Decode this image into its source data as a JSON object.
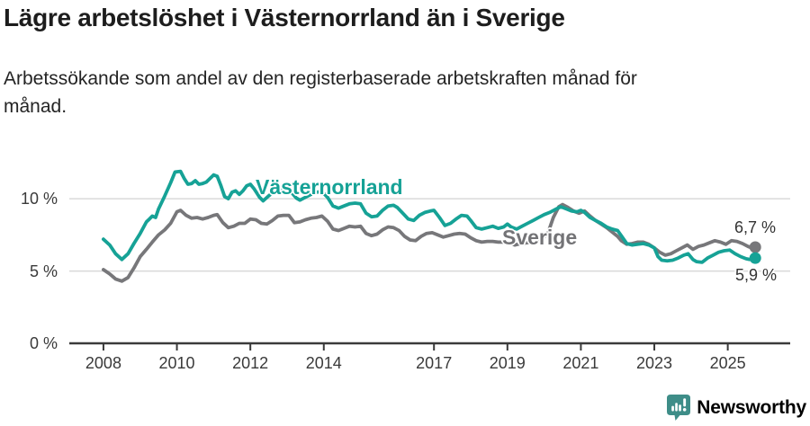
{
  "header": {
    "title": "Lägre arbetslöshet i Västernorrland än i Sverige",
    "subtitle_lines": [
      "Arbetssökande som andel av den registerbaserade arbetskraften månad för",
      "månad."
    ]
  },
  "chart_data": {
    "type": "line",
    "unit": "%",
    "grid": "horizontal",
    "legend_position": "inline-labels-on-lines",
    "x_axis": {
      "range": [
        2007.07,
        2026.7
      ],
      "ticks": [
        2008,
        2010,
        2012,
        2014,
        2017,
        2019,
        2021,
        2023,
        2025
      ]
    },
    "y_axis": {
      "range": [
        0,
        13.8
      ],
      "ticks": [
        {
          "value": 0,
          "label": "0 %"
        },
        {
          "value": 5,
          "label": "5 %"
        },
        {
          "value": 10,
          "label": "10 %"
        }
      ]
    },
    "series": [
      {
        "name": "Sverige",
        "color": "#77777a",
        "end_label": "6,7 %",
        "points": [
          [
            2008.0,
            5.1
          ],
          [
            2008.17,
            4.8
          ],
          [
            2008.33,
            4.45
          ],
          [
            2008.5,
            4.3
          ],
          [
            2008.67,
            4.55
          ],
          [
            2008.83,
            5.2
          ],
          [
            2009.0,
            6.0
          ],
          [
            2009.17,
            6.5
          ],
          [
            2009.33,
            7.0
          ],
          [
            2009.5,
            7.5
          ],
          [
            2009.67,
            7.85
          ],
          [
            2009.83,
            8.3
          ],
          [
            2010.0,
            9.1
          ],
          [
            2010.1,
            9.2
          ],
          [
            2010.25,
            8.85
          ],
          [
            2010.4,
            8.65
          ],
          [
            2010.55,
            8.7
          ],
          [
            2010.7,
            8.6
          ],
          [
            2010.85,
            8.7
          ],
          [
            2011.0,
            8.85
          ],
          [
            2011.1,
            8.9
          ],
          [
            2011.25,
            8.35
          ],
          [
            2011.4,
            8.0
          ],
          [
            2011.55,
            8.1
          ],
          [
            2011.7,
            8.3
          ],
          [
            2011.85,
            8.3
          ],
          [
            2012.0,
            8.6
          ],
          [
            2012.15,
            8.55
          ],
          [
            2012.3,
            8.3
          ],
          [
            2012.45,
            8.25
          ],
          [
            2012.6,
            8.5
          ],
          [
            2012.75,
            8.8
          ],
          [
            2012.9,
            8.85
          ],
          [
            2013.05,
            8.85
          ],
          [
            2013.2,
            8.35
          ],
          [
            2013.35,
            8.4
          ],
          [
            2013.5,
            8.55
          ],
          [
            2013.65,
            8.65
          ],
          [
            2013.8,
            8.7
          ],
          [
            2013.95,
            8.8
          ],
          [
            2014.1,
            8.45
          ],
          [
            2014.25,
            7.9
          ],
          [
            2014.4,
            7.8
          ],
          [
            2014.55,
            7.95
          ],
          [
            2014.7,
            8.1
          ],
          [
            2014.85,
            8.05
          ],
          [
            2015.0,
            8.1
          ],
          [
            2015.15,
            7.6
          ],
          [
            2015.3,
            7.45
          ],
          [
            2015.45,
            7.55
          ],
          [
            2015.6,
            7.85
          ],
          [
            2015.75,
            8.05
          ],
          [
            2015.9,
            8.0
          ],
          [
            2016.05,
            7.8
          ],
          [
            2016.2,
            7.4
          ],
          [
            2016.35,
            7.15
          ],
          [
            2016.5,
            7.1
          ],
          [
            2016.65,
            7.4
          ],
          [
            2016.8,
            7.6
          ],
          [
            2016.95,
            7.65
          ],
          [
            2017.1,
            7.5
          ],
          [
            2017.25,
            7.35
          ],
          [
            2017.4,
            7.45
          ],
          [
            2017.55,
            7.55
          ],
          [
            2017.7,
            7.6
          ],
          [
            2017.85,
            7.55
          ],
          [
            2018.0,
            7.3
          ],
          [
            2018.15,
            7.1
          ],
          [
            2018.3,
            7.0
          ],
          [
            2018.45,
            7.05
          ],
          [
            2018.6,
            7.05
          ],
          [
            2018.75,
            7.0
          ],
          [
            2018.9,
            7.0
          ],
          [
            2019.05,
            6.95
          ],
          [
            2019.2,
            6.8
          ],
          [
            2019.35,
            6.9
          ],
          [
            2019.5,
            6.95
          ],
          [
            2019.65,
            7.0
          ],
          [
            2019.8,
            7.1
          ],
          [
            2019.95,
            7.25
          ],
          [
            2020.1,
            7.6
          ],
          [
            2020.25,
            8.7
          ],
          [
            2020.4,
            9.45
          ],
          [
            2020.5,
            9.6
          ],
          [
            2020.65,
            9.4
          ],
          [
            2020.8,
            9.15
          ],
          [
            2020.95,
            9.0
          ],
          [
            2021.1,
            9.15
          ],
          [
            2021.25,
            8.8
          ],
          [
            2021.4,
            8.5
          ],
          [
            2021.55,
            8.25
          ],
          [
            2021.7,
            8.0
          ],
          [
            2021.85,
            7.7
          ],
          [
            2022.0,
            7.4
          ],
          [
            2022.1,
            7.1
          ],
          [
            2022.25,
            6.85
          ],
          [
            2022.4,
            6.9
          ],
          [
            2022.55,
            7.0
          ],
          [
            2022.7,
            7.0
          ],
          [
            2022.85,
            6.85
          ],
          [
            2023.0,
            6.6
          ],
          [
            2023.15,
            6.3
          ],
          [
            2023.3,
            6.1
          ],
          [
            2023.45,
            6.2
          ],
          [
            2023.6,
            6.4
          ],
          [
            2023.75,
            6.6
          ],
          [
            2023.9,
            6.8
          ],
          [
            2024.05,
            6.5
          ],
          [
            2024.2,
            6.7
          ],
          [
            2024.35,
            6.8
          ],
          [
            2024.5,
            6.95
          ],
          [
            2024.65,
            7.1
          ],
          [
            2024.8,
            7.0
          ],
          [
            2024.95,
            6.85
          ],
          [
            2025.1,
            7.1
          ],
          [
            2025.25,
            7.05
          ],
          [
            2025.4,
            6.9
          ],
          [
            2025.55,
            6.7
          ],
          [
            2025.65,
            6.6
          ],
          [
            2025.75,
            6.65
          ]
        ]
      },
      {
        "name": "Västernorrland",
        "color": "#16a296",
        "end_label": "5,9 %",
        "points": [
          [
            2008.0,
            7.2
          ],
          [
            2008.17,
            6.8
          ],
          [
            2008.33,
            6.2
          ],
          [
            2008.5,
            5.8
          ],
          [
            2008.67,
            6.2
          ],
          [
            2008.83,
            6.9
          ],
          [
            2009.0,
            7.6
          ],
          [
            2009.17,
            8.4
          ],
          [
            2009.25,
            8.6
          ],
          [
            2009.33,
            8.8
          ],
          [
            2009.42,
            8.7
          ],
          [
            2009.5,
            9.3
          ],
          [
            2009.67,
            10.2
          ],
          [
            2009.83,
            11.1
          ],
          [
            2009.95,
            11.85
          ],
          [
            2010.1,
            11.9
          ],
          [
            2010.2,
            11.4
          ],
          [
            2010.3,
            11.0
          ],
          [
            2010.4,
            11.05
          ],
          [
            2010.5,
            11.25
          ],
          [
            2010.6,
            11.0
          ],
          [
            2010.7,
            11.05
          ],
          [
            2010.8,
            11.15
          ],
          [
            2010.9,
            11.4
          ],
          [
            2011.0,
            11.65
          ],
          [
            2011.1,
            11.55
          ],
          [
            2011.2,
            10.9
          ],
          [
            2011.3,
            10.15
          ],
          [
            2011.4,
            10.0
          ],
          [
            2011.5,
            10.45
          ],
          [
            2011.6,
            10.55
          ],
          [
            2011.7,
            10.3
          ],
          [
            2011.8,
            10.55
          ],
          [
            2011.9,
            10.9
          ],
          [
            2012.0,
            11.0
          ],
          [
            2012.1,
            10.7
          ],
          [
            2012.25,
            10.1
          ],
          [
            2012.35,
            9.85
          ],
          [
            2012.5,
            10.2
          ],
          [
            2012.65,
            10.5
          ],
          [
            2012.8,
            10.7
          ],
          [
            2012.95,
            10.8
          ],
          [
            2013.1,
            10.5
          ],
          [
            2013.25,
            10.05
          ],
          [
            2013.35,
            9.9
          ],
          [
            2013.5,
            10.1
          ],
          [
            2013.65,
            10.3
          ],
          [
            2013.8,
            10.45
          ],
          [
            2013.95,
            10.5
          ],
          [
            2014.1,
            10.1
          ],
          [
            2014.25,
            9.5
          ],
          [
            2014.4,
            9.35
          ],
          [
            2014.55,
            9.5
          ],
          [
            2014.7,
            9.65
          ],
          [
            2014.85,
            9.7
          ],
          [
            2015.0,
            9.65
          ],
          [
            2015.15,
            9.0
          ],
          [
            2015.3,
            8.75
          ],
          [
            2015.45,
            8.8
          ],
          [
            2015.6,
            9.2
          ],
          [
            2015.75,
            9.5
          ],
          [
            2015.9,
            9.55
          ],
          [
            2016.0,
            9.4
          ],
          [
            2016.15,
            9.0
          ],
          [
            2016.3,
            8.6
          ],
          [
            2016.45,
            8.5
          ],
          [
            2016.6,
            8.85
          ],
          [
            2016.75,
            9.05
          ],
          [
            2016.9,
            9.15
          ],
          [
            2017.0,
            9.2
          ],
          [
            2017.15,
            8.7
          ],
          [
            2017.3,
            8.15
          ],
          [
            2017.45,
            8.3
          ],
          [
            2017.6,
            8.6
          ],
          [
            2017.75,
            8.85
          ],
          [
            2017.9,
            8.8
          ],
          [
            2018.0,
            8.5
          ],
          [
            2018.15,
            8.0
          ],
          [
            2018.3,
            7.9
          ],
          [
            2018.45,
            8.0
          ],
          [
            2018.6,
            8.1
          ],
          [
            2018.75,
            7.95
          ],
          [
            2018.9,
            8.05
          ],
          [
            2019.0,
            8.25
          ],
          [
            2019.1,
            8.05
          ],
          [
            2019.25,
            7.9
          ],
          [
            2019.4,
            8.1
          ],
          [
            2019.55,
            8.3
          ],
          [
            2019.7,
            8.5
          ],
          [
            2019.85,
            8.7
          ],
          [
            2020.0,
            8.9
          ],
          [
            2020.15,
            9.05
          ],
          [
            2020.3,
            9.25
          ],
          [
            2020.45,
            9.45
          ],
          [
            2020.6,
            9.3
          ],
          [
            2020.75,
            9.15
          ],
          [
            2020.9,
            9.1
          ],
          [
            2021.0,
            9.2
          ],
          [
            2021.1,
            9.05
          ],
          [
            2021.25,
            8.7
          ],
          [
            2021.4,
            8.5
          ],
          [
            2021.55,
            8.3
          ],
          [
            2021.7,
            8.05
          ],
          [
            2021.85,
            7.9
          ],
          [
            2022.0,
            7.8
          ],
          [
            2022.1,
            7.45
          ],
          [
            2022.25,
            6.9
          ],
          [
            2022.4,
            6.8
          ],
          [
            2022.55,
            6.85
          ],
          [
            2022.7,
            6.9
          ],
          [
            2022.85,
            6.8
          ],
          [
            2023.0,
            6.6
          ],
          [
            2023.1,
            6.0
          ],
          [
            2023.2,
            5.75
          ],
          [
            2023.35,
            5.7
          ],
          [
            2023.5,
            5.75
          ],
          [
            2023.65,
            5.9
          ],
          [
            2023.8,
            6.1
          ],
          [
            2023.92,
            6.2
          ],
          [
            2024.05,
            5.8
          ],
          [
            2024.15,
            5.65
          ],
          [
            2024.3,
            5.6
          ],
          [
            2024.45,
            5.9
          ],
          [
            2024.6,
            6.1
          ],
          [
            2024.75,
            6.3
          ],
          [
            2024.9,
            6.4
          ],
          [
            2025.05,
            6.45
          ],
          [
            2025.2,
            6.2
          ],
          [
            2025.35,
            6.0
          ],
          [
            2025.5,
            5.85
          ],
          [
            2025.6,
            5.8
          ],
          [
            2025.75,
            5.9
          ]
        ]
      }
    ],
    "colors": {
      "gridline": "#d9d9d9",
      "axis": "#3a3a3a",
      "vasternorrland": "#16a296",
      "sverige": "#77777a"
    }
  },
  "branding": {
    "name": "Newsworthy",
    "color": "#3e8d88"
  }
}
